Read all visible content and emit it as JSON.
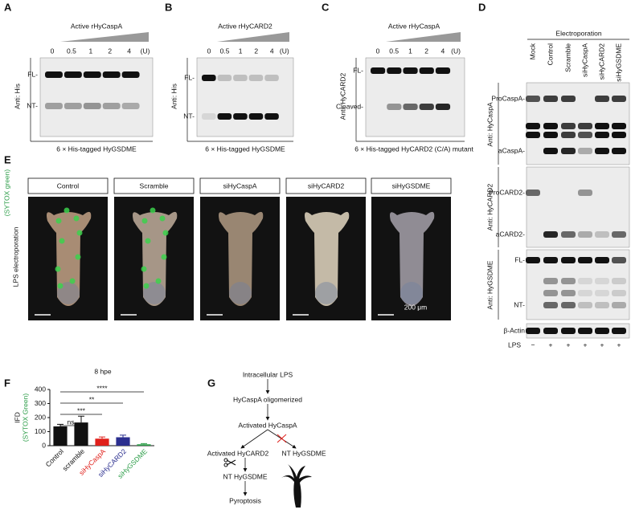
{
  "panels": {
    "A": {
      "letter": "A",
      "title": "Active rHyCaspA",
      "lanes": [
        "0",
        "0.5",
        "1",
        "2",
        "4",
        "(U)"
      ],
      "antibody": "Anti: His",
      "bands": [
        "FL-",
        "NT-"
      ],
      "caption": "6 × His-tagged HyGSDME"
    },
    "B": {
      "letter": "B",
      "title": "Active rHyCARD2",
      "lanes": [
        "0",
        "0.5",
        "1",
        "2",
        "4",
        "(U)"
      ],
      "antibody": "Anti: His",
      "bands": [
        "FL-",
        "NT-"
      ],
      "caption": "6 × His-tagged HyGSDME"
    },
    "C": {
      "letter": "C",
      "title": "Active rHyCaspA",
      "lanes": [
        "0",
        "0.5",
        "1",
        "2",
        "4",
        "(U)"
      ],
      "antibody": "Anti: HyCARD2",
      "bands": [
        "FL-",
        "Cleaved-"
      ],
      "caption": "6 × His-tagged HyCARD2 (C/A) mutant"
    },
    "D": {
      "letter": "D",
      "header": "Electroporation",
      "columns": [
        "Mock",
        "Control",
        "Scramble",
        "siHyCaspA",
        "siHyCARD2",
        "siHyGSDME"
      ],
      "blots": [
        {
          "antibody": "Anti: HyCaspA",
          "bands": [
            "ProCaspA-",
            "aCaspA-"
          ]
        },
        {
          "antibody": "Anti: HyCARD2",
          "bands": [
            "ProCARD2-",
            "aCARD2-"
          ]
        },
        {
          "antibody": "Anti: HyGSDME",
          "bands": [
            "FL-",
            "NT-"
          ]
        }
      ],
      "loading": "β-Actin",
      "lps_label": "LPS",
      "lps": [
        "−",
        "+",
        "+",
        "+",
        "+",
        "+"
      ]
    },
    "E": {
      "letter": "E",
      "groups": [
        "Control",
        "Scramble",
        "siHyCaspA",
        "siHyCARD2",
        "siHyGSDME"
      ],
      "row_label": "LPS electroporation",
      "stain": "(SYTOX green)",
      "scale_bar": "200 μm"
    },
    "F": {
      "letter": "F"
    },
    "G": {
      "letter": "G",
      "steps": [
        "Intracellular LPS",
        "HyCaspA oligomerized",
        "Activated HyCaspA",
        "Activated HyCARD2",
        "NT HyGSDME",
        "NT HyGSDME",
        "Pyroptosis"
      ]
    }
  },
  "chart_data": {
    "type": "bar",
    "title": "8 hpe",
    "y_label": "IFD",
    "y_label_sub": "(SYTOX Green)",
    "y_label_sub_color": "#2e9e4a",
    "categories": [
      "Control",
      "scramble",
      "siHyCaspA",
      "siHyCARD2",
      "siHyGSDME"
    ],
    "values": [
      137,
      165,
      50,
      60,
      10
    ],
    "errors": [
      15,
      45,
      12,
      15,
      5
    ],
    "colors": [
      "#111111",
      "#111111",
      "#e0201b",
      "#2b2f8f",
      "#2e9e4a"
    ],
    "label_colors": [
      "#111111",
      "#111111",
      "#e0201b",
      "#2b2f8f",
      "#2e9e4a"
    ],
    "significance": [
      "ns",
      "***",
      "**",
      "****"
    ],
    "ylim": [
      0,
      400
    ],
    "yticks": [
      0,
      100,
      200,
      300,
      400
    ]
  }
}
